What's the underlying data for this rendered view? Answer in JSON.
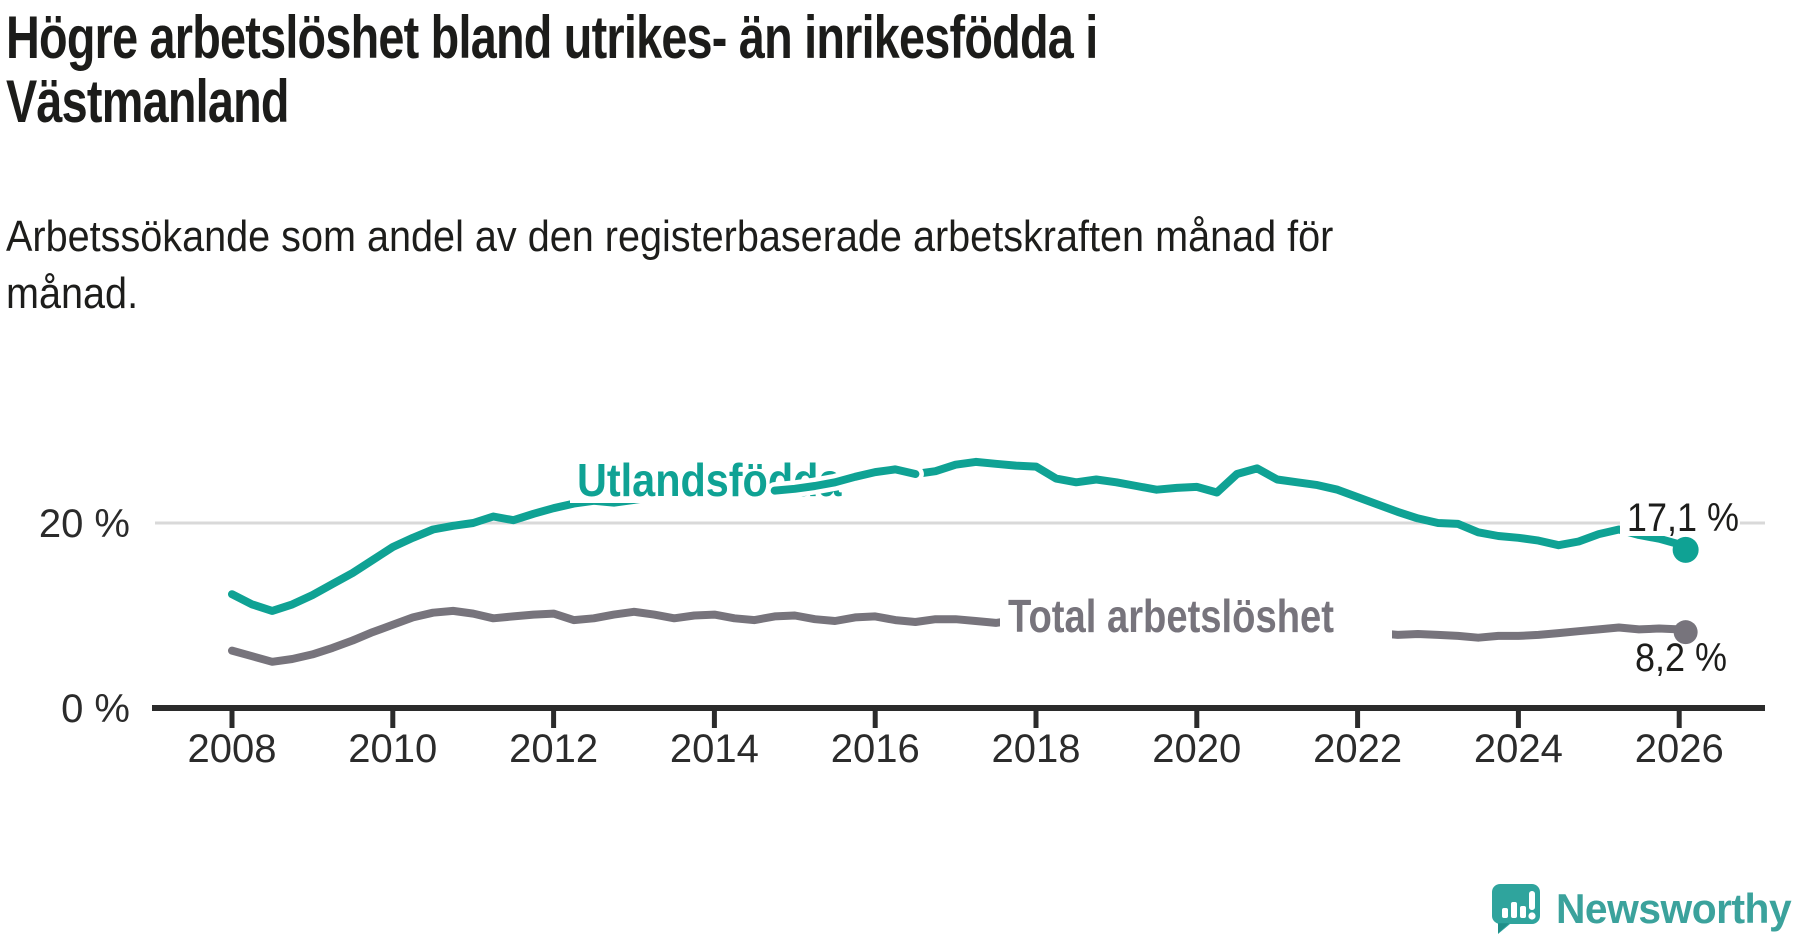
{
  "header": {
    "title_line1": "Högre arbetslöshet bland utrikes- än inrikesfödda i",
    "title_line2": "Västmanland",
    "subtitle_line1": "Arbetssökande som andel av den registerbaserade arbetskraften månad för",
    "subtitle_line2": "månad."
  },
  "chart_data": {
    "type": "line",
    "title": "Högre arbetslöshet bland utrikes- än inrikesfödda i Västmanland",
    "subtitle": "Arbetssökande som andel av den registerbaserade arbetskraften månad för månad.",
    "x_axis": {
      "unit": "year",
      "start": 2008,
      "step": 0.25,
      "last_x": 2026.08,
      "tick_years": [
        2008,
        2010,
        2012,
        2014,
        2016,
        2018,
        2020,
        2022,
        2024,
        2026
      ],
      "tick_labels": [
        "2008",
        "2010",
        "2012",
        "2014",
        "2016",
        "2018",
        "2020",
        "2022",
        "2024",
        "2026"
      ]
    },
    "y_axis": {
      "range": [
        0,
        29
      ],
      "grid_values": [
        20
      ],
      "ticks": [
        {
          "value": 0,
          "label": "0 %"
        },
        {
          "value": 20,
          "label": "20 %"
        }
      ]
    },
    "series": [
      {
        "name": "Utlandsfödda",
        "color": "#0fa294",
        "end_label": "17,1 %",
        "end_value": 17.1,
        "values": [
          12.3,
          11.2,
          10.5,
          11.2,
          12.2,
          13.4,
          14.6,
          16.0,
          17.4,
          18.4,
          19.3,
          19.7,
          20.0,
          20.7,
          20.3,
          21.0,
          21.6,
          22.1,
          22.4,
          22.2,
          22.5,
          22.8,
          22.6,
          22.9,
          23.1,
          23.4,
          23.2,
          23.5,
          23.7,
          24.0,
          24.4,
          25.0,
          25.5,
          25.8,
          25.3,
          25.6,
          26.3,
          26.6,
          26.4,
          26.2,
          26.1,
          24.8,
          24.4,
          24.7,
          24.4,
          24.0,
          23.6,
          23.8,
          23.9,
          23.3,
          25.3,
          25.9,
          24.7,
          24.4,
          24.1,
          23.6,
          22.8,
          22.0,
          21.2,
          20.5,
          20.0,
          19.9,
          19.0,
          18.6,
          18.4,
          18.1,
          17.6,
          18.0,
          18.8,
          19.3,
          18.7,
          18.3,
          17.7,
          17.1
        ]
      },
      {
        "name": "Total arbetslöshet",
        "color": "#77747c",
        "end_label": "8,2 %",
        "end_value": 8.2,
        "values": [
          6.2,
          5.6,
          5.0,
          5.3,
          5.8,
          6.5,
          7.3,
          8.2,
          9.0,
          9.8,
          10.3,
          10.5,
          10.2,
          9.7,
          9.9,
          10.1,
          10.2,
          9.5,
          9.7,
          10.1,
          10.4,
          10.1,
          9.7,
          10.0,
          10.1,
          9.7,
          9.5,
          9.9,
          10.0,
          9.6,
          9.4,
          9.8,
          9.9,
          9.5,
          9.3,
          9.6,
          9.6,
          9.4,
          9.2,
          9.5,
          9.4,
          9.0,
          8.8,
          9.1,
          9.2,
          8.9,
          8.7,
          9.0,
          9.1,
          9.5,
          9.9,
          9.8,
          9.6,
          9.3,
          9.0,
          8.8,
          8.5,
          8.1,
          7.9,
          8.0,
          7.9,
          7.8,
          7.6,
          7.8,
          7.8,
          7.9,
          8.1,
          8.3,
          8.5,
          8.7,
          8.5,
          8.6,
          8.5,
          8.2
        ]
      }
    ],
    "legend_position": "inline-labels",
    "grid": "horizontal-only"
  },
  "colors": {
    "background": "#ffffff",
    "accent_teal": "#0fa294",
    "series_gray": "#77747c",
    "axis": "#2b2b2b",
    "gridline": "#d9d9d9",
    "title_text": "#1c1c1a",
    "logo_teal": "#3ba29c"
  },
  "branding": {
    "logo_text": "Newsworthy",
    "logo_icon": "speech-bubble-bar-chart-icon"
  }
}
